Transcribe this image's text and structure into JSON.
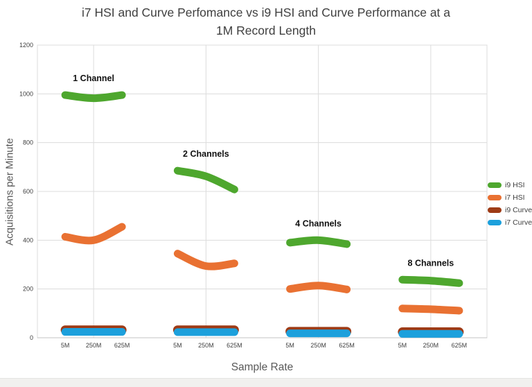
{
  "page": {
    "background": "#ffffff",
    "footer_strip_color": "#f1f0ee"
  },
  "chart_data": {
    "type": "line",
    "title": "i7 HSI and Curve Perfomance vs i9 HSI and Curve Performance at a\n1M Record Length",
    "xlabel": "Sample Rate",
    "ylabel": "Acquisitions per Minute",
    "ylim": [
      0,
      1200
    ],
    "yticks": [
      0,
      200,
      400,
      600,
      800,
      1000,
      1200
    ],
    "grid": true,
    "legend_position": "right",
    "groups": [
      "1 Channel",
      "2 Channels",
      "4 Channels",
      "8 Channels"
    ],
    "x_tick_labels": [
      "5M",
      "250M",
      "625M"
    ],
    "series": [
      {
        "name": "i9 HSI",
        "color": "#4ea72e",
        "line_width": 11,
        "values_by_group": [
          [
            995,
            982,
            995
          ],
          [
            685,
            662,
            608
          ],
          [
            390,
            400,
            384
          ],
          [
            238,
            234,
            224
          ]
        ]
      },
      {
        "name": "i7 HSI",
        "color": "#e97132",
        "line_width": 11,
        "values_by_group": [
          [
            414,
            400,
            455
          ],
          [
            345,
            294,
            305
          ],
          [
            200,
            214,
            198
          ],
          [
            120,
            117,
            111
          ]
        ]
      },
      {
        "name": "i9 Curve",
        "color": "#9e3b16",
        "line_width": 13,
        "values_by_group": [
          [
            32,
            32,
            32
          ],
          [
            32,
            32,
            32
          ],
          [
            26,
            26,
            26
          ],
          [
            24,
            24,
            24
          ]
        ]
      },
      {
        "name": "i7 Curve",
        "color": "#1ca0dc",
        "line_width": 11,
        "values_by_group": [
          [
            24,
            24,
            24
          ],
          [
            23,
            23,
            23
          ],
          [
            18,
            18,
            18
          ],
          [
            16,
            16,
            16
          ]
        ]
      }
    ],
    "annotation_color": "#111111",
    "gridline_color": "#dcdcdc",
    "axis_line_color": "#c3c3c3",
    "tick_label_color": "#404040"
  }
}
